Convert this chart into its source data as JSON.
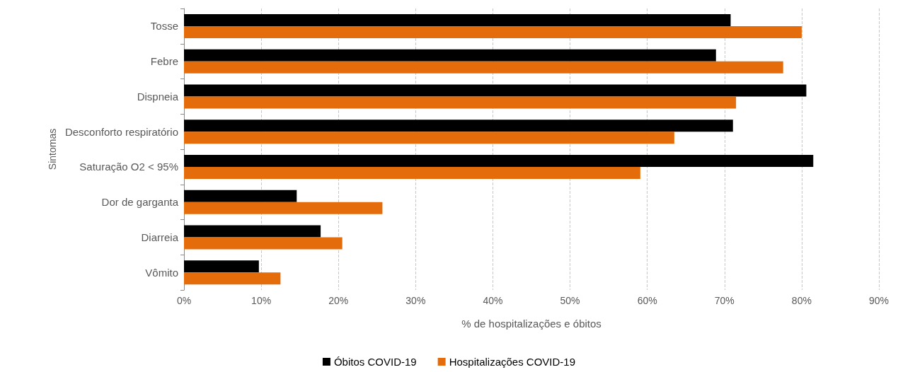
{
  "chart_data": {
    "type": "bar",
    "orientation": "horizontal",
    "xlabel": "% de hospitalizações e óbitos",
    "ylabel": "Sintomas",
    "categories": [
      "Tosse",
      "Febre",
      "Dispneia",
      "Desconforto respiratório",
      "Saturação O2 < 95%",
      "Dor de garganta",
      "Diarreia",
      "Vômito"
    ],
    "series": [
      {
        "name": "Óbitos COVID-19",
        "color": "#000000",
        "values": [
          70.8,
          68.9,
          80.6,
          71.1,
          81.5,
          14.6,
          17.7,
          9.7
        ]
      },
      {
        "name": "Hospitalizações COVID-19",
        "color": "#e46c0a",
        "values": [
          80.0,
          77.6,
          71.5,
          63.5,
          59.1,
          25.7,
          20.5,
          12.5
        ]
      }
    ],
    "xlim": [
      0,
      90
    ],
    "xticks": [
      {
        "value": 0,
        "label": "0%"
      },
      {
        "value": 10,
        "label": "10%"
      },
      {
        "value": 20,
        "label": "20%"
      },
      {
        "value": 30,
        "label": "30%"
      },
      {
        "value": 40,
        "label": "40%"
      },
      {
        "value": 50,
        "label": "50%"
      },
      {
        "value": 60,
        "label": "60%"
      },
      {
        "value": 70,
        "label": "70%"
      },
      {
        "value": 80,
        "label": "80%"
      },
      {
        "value": 90,
        "label": "90%"
      }
    ],
    "grid": "x",
    "legend": "bottom"
  }
}
